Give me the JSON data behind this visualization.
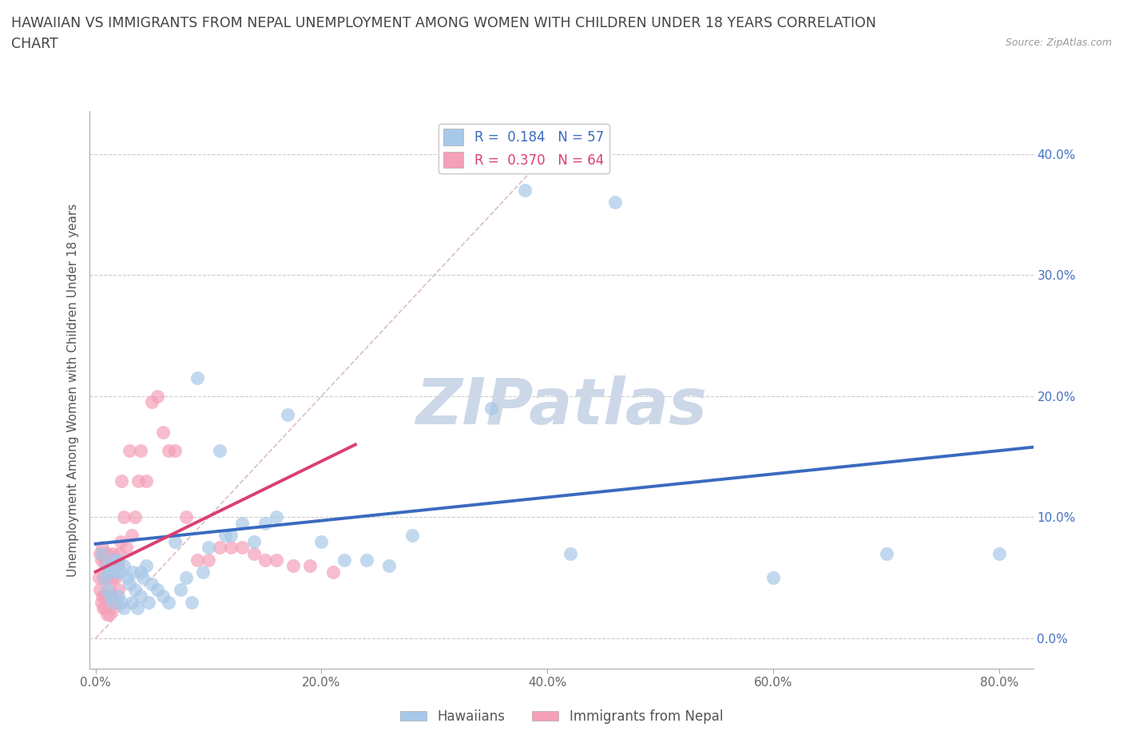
{
  "title_line1": "HAWAIIAN VS IMMIGRANTS FROM NEPAL UNEMPLOYMENT AMONG WOMEN WITH CHILDREN UNDER 18 YEARS CORRELATION",
  "title_line2": "CHART",
  "source_text": "Source: ZipAtlas.com",
  "ylabel": "Unemployment Among Women with Children Under 18 years",
  "xlim": [
    -0.005,
    0.83
  ],
  "ylim": [
    -0.025,
    0.435
  ],
  "xticks": [
    0.0,
    0.2,
    0.4,
    0.6,
    0.8
  ],
  "yticks_right": [
    0.0,
    0.1,
    0.2,
    0.3,
    0.4
  ],
  "ytick_right_labels": [
    "0.0%",
    "10.0%",
    "20.0%",
    "30.0%",
    "40.0%"
  ],
  "xtick_labels": [
    "0.0%",
    "20.0%",
    "40.0%",
    "60.0%",
    "80.0%"
  ],
  "hawaiian_R": 0.184,
  "hawaiian_N": 57,
  "nepal_R": 0.37,
  "nepal_N": 64,
  "hawaiian_color": "#a8c8e8",
  "nepal_color": "#f4a0b8",
  "hawaiian_line_color": "#3a6abf",
  "nepal_line_color": "#d94070",
  "diagonal_color": "#d8b8b8",
  "watermark_color": "#ccd8e8",
  "title_fontsize": 12.5,
  "axis_label_fontsize": 11,
  "tick_fontsize": 11,
  "legend_fontsize": 12,
  "hawaiian_x": [
    0.005,
    0.008,
    0.01,
    0.01,
    0.012,
    0.013,
    0.015,
    0.015,
    0.018,
    0.02,
    0.02,
    0.022,
    0.023,
    0.025,
    0.025,
    0.028,
    0.03,
    0.032,
    0.033,
    0.035,
    0.037,
    0.04,
    0.04,
    0.042,
    0.045,
    0.047,
    0.05,
    0.055,
    0.06,
    0.065,
    0.07,
    0.075,
    0.08,
    0.085,
    0.09,
    0.095,
    0.1,
    0.11,
    0.115,
    0.12,
    0.13,
    0.14,
    0.15,
    0.16,
    0.17,
    0.2,
    0.22,
    0.24,
    0.26,
    0.28,
    0.35,
    0.38,
    0.42,
    0.46,
    0.6,
    0.7,
    0.8
  ],
  "hawaiian_y": [
    0.07,
    0.05,
    0.06,
    0.04,
    0.055,
    0.035,
    0.065,
    0.03,
    0.055,
    0.065,
    0.035,
    0.055,
    0.03,
    0.06,
    0.025,
    0.05,
    0.045,
    0.03,
    0.055,
    0.04,
    0.025,
    0.055,
    0.035,
    0.05,
    0.06,
    0.03,
    0.045,
    0.04,
    0.035,
    0.03,
    0.08,
    0.04,
    0.05,
    0.03,
    0.215,
    0.055,
    0.075,
    0.155,
    0.085,
    0.085,
    0.095,
    0.08,
    0.095,
    0.1,
    0.185,
    0.08,
    0.065,
    0.065,
    0.06,
    0.085,
    0.19,
    0.37,
    0.07,
    0.36,
    0.05,
    0.07,
    0.07
  ],
  "nepal_x": [
    0.003,
    0.004,
    0.004,
    0.005,
    0.005,
    0.006,
    0.006,
    0.007,
    0.007,
    0.007,
    0.008,
    0.008,
    0.009,
    0.009,
    0.01,
    0.01,
    0.01,
    0.011,
    0.011,
    0.012,
    0.012,
    0.012,
    0.013,
    0.013,
    0.014,
    0.014,
    0.015,
    0.015,
    0.015,
    0.016,
    0.016,
    0.017,
    0.018,
    0.019,
    0.02,
    0.02,
    0.021,
    0.022,
    0.023,
    0.025,
    0.027,
    0.03,
    0.032,
    0.035,
    0.038,
    0.04,
    0.045,
    0.05,
    0.055,
    0.06,
    0.065,
    0.07,
    0.08,
    0.09,
    0.1,
    0.11,
    0.12,
    0.13,
    0.14,
    0.15,
    0.16,
    0.175,
    0.19,
    0.21
  ],
  "nepal_y": [
    0.05,
    0.07,
    0.04,
    0.065,
    0.03,
    0.075,
    0.035,
    0.07,
    0.05,
    0.025,
    0.065,
    0.035,
    0.06,
    0.025,
    0.07,
    0.05,
    0.02,
    0.065,
    0.035,
    0.06,
    0.04,
    0.02,
    0.065,
    0.03,
    0.055,
    0.035,
    0.07,
    0.05,
    0.025,
    0.06,
    0.03,
    0.05,
    0.065,
    0.03,
    0.06,
    0.04,
    0.07,
    0.08,
    0.13,
    0.1,
    0.075,
    0.155,
    0.085,
    0.1,
    0.13,
    0.155,
    0.13,
    0.195,
    0.2,
    0.17,
    0.155,
    0.155,
    0.1,
    0.065,
    0.065,
    0.075,
    0.075,
    0.075,
    0.07,
    0.065,
    0.065,
    0.06,
    0.06,
    0.055
  ]
}
